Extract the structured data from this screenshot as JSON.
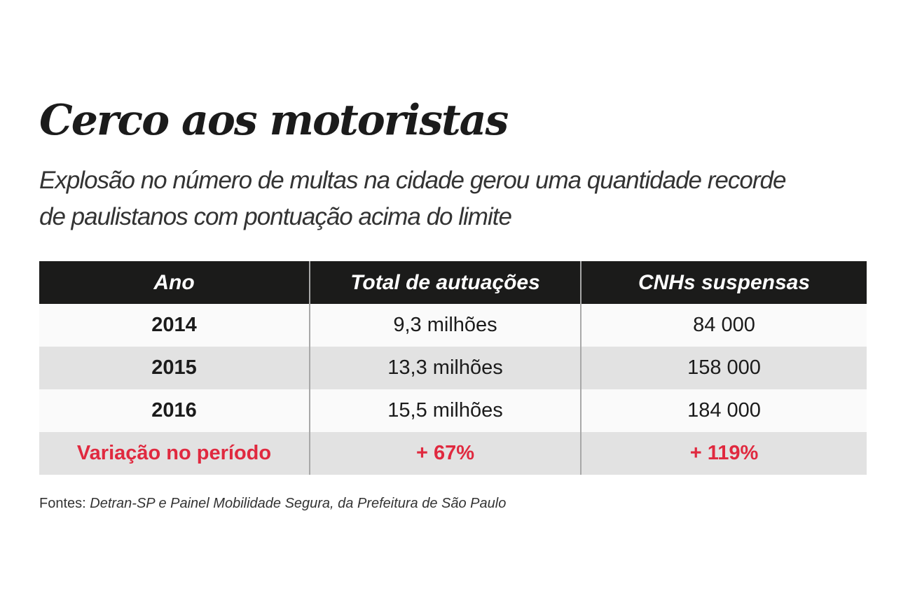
{
  "title": "Cerco aos motoristas",
  "subtitle": "Explosão no número de multas na cidade gerou uma quantidade recorde de paulistanos com pontuação acima do limite",
  "chart_data": {
    "type": "table",
    "columns": [
      "Ano",
      "Total de autuações",
      "CNHs suspensas"
    ],
    "rows": [
      [
        "2014",
        "9,3 milhões",
        "84 000"
      ],
      [
        "2015",
        "13,3 milhões",
        "158 000"
      ],
      [
        "2016",
        "15,5 milhões",
        "184 000"
      ]
    ],
    "summary_row": [
      "Variação no período",
      "+ 67%",
      "+ 119%"
    ],
    "accent_color": "#e0293f"
  },
  "source": {
    "label": "Fontes:",
    "text": "Detran-SP e Painel Mobilidade Segura, da Prefeitura de São Paulo"
  }
}
